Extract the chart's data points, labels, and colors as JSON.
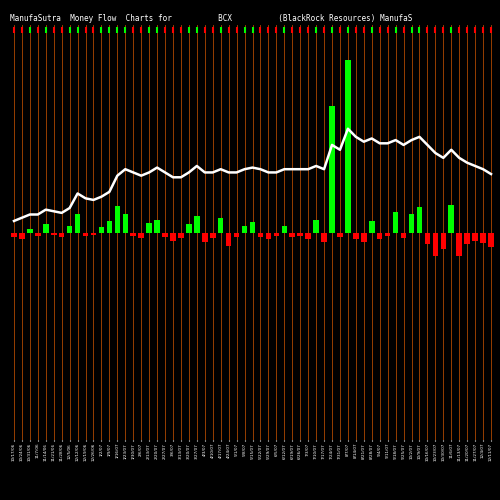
{
  "title": "ManufaSutra  Money Flow  Charts for          BCX          (BlackRock Resources) ManufaS",
  "background_color": "#000000",
  "bar_width": 0.7,
  "line_color": "#ffffff",
  "green_color": "#00ff00",
  "red_color": "#ff0000",
  "orange_color": "#cc5500",
  "categories": [
    "10/17/06",
    "10/24/06",
    "10/31/06",
    "11/7/06",
    "11/14/06",
    "11/21/06",
    "11/28/06",
    "12/5/06",
    "12/12/06",
    "12/19/06",
    "12/26/06",
    "1/2/07",
    "1/9/07",
    "1/16/07",
    "1/23/07",
    "1/30/07",
    "2/6/07",
    "2/13/07",
    "2/20/07",
    "2/27/07",
    "3/6/07",
    "3/13/07",
    "3/20/07",
    "3/27/07",
    "4/3/07",
    "4/10/07",
    "4/17/07",
    "4/24/07",
    "5/1/07",
    "5/8/07",
    "5/15/07",
    "5/22/07",
    "5/29/07",
    "6/5/07",
    "6/12/07",
    "6/19/07",
    "6/26/07",
    "7/3/07",
    "7/10/07",
    "7/17/07",
    "7/24/07",
    "7/31/07",
    "8/7/07",
    "8/14/07",
    "8/21/07",
    "8/28/07",
    "9/4/07",
    "9/11/07",
    "9/18/07",
    "9/25/07",
    "10/2/07",
    "10/9/07",
    "10/16/07",
    "10/23/07",
    "10/30/07",
    "11/6/07",
    "11/13/07",
    "11/20/07",
    "11/27/07",
    "12/4/07",
    "12/11/07"
  ],
  "bar_values": [
    -2.0,
    -3.0,
    1.5,
    -1.5,
    3.5,
    -1.0,
    -2.0,
    3.0,
    8.0,
    -1.5,
    -1.0,
    2.5,
    5.0,
    11.5,
    8.0,
    -1.5,
    -2.5,
    4.0,
    5.5,
    -2.0,
    -3.5,
    -2.5,
    3.5,
    7.0,
    -4.0,
    -2.5,
    6.5,
    -6.0,
    -2.0,
    3.0,
    4.5,
    -2.0,
    -3.0,
    -1.5,
    3.0,
    -2.0,
    -1.5,
    -3.0,
    5.5,
    -4.0,
    55.0,
    -2.0,
    75.0,
    -3.0,
    -4.0,
    5.0,
    -3.0,
    -1.5,
    9.0,
    -2.5,
    8.0,
    11.0,
    -5.0,
    -10.0,
    -7.0,
    12.0,
    -10.0,
    -5.0,
    -3.5,
    -4.5,
    -6.5
  ],
  "line_values": [
    168,
    170,
    172,
    172,
    175,
    174,
    173,
    176,
    185,
    182,
    181,
    183,
    186,
    196,
    200,
    198,
    196,
    198,
    201,
    198,
    195,
    195,
    198,
    202,
    198,
    198,
    200,
    198,
    198,
    200,
    201,
    200,
    198,
    198,
    200,
    200,
    200,
    200,
    202,
    200,
    215,
    212,
    225,
    220,
    217,
    219,
    216,
    216,
    218,
    215,
    218,
    220,
    215,
    210,
    207,
    212,
    207,
    204,
    202,
    200,
    197
  ],
  "line_min": 168,
  "line_max": 225,
  "line_display_min": 155,
  "line_display_max": 210,
  "ylim_min": -90,
  "ylim_max": 90,
  "figsize": [
    5.0,
    5.0
  ],
  "dpi": 100
}
